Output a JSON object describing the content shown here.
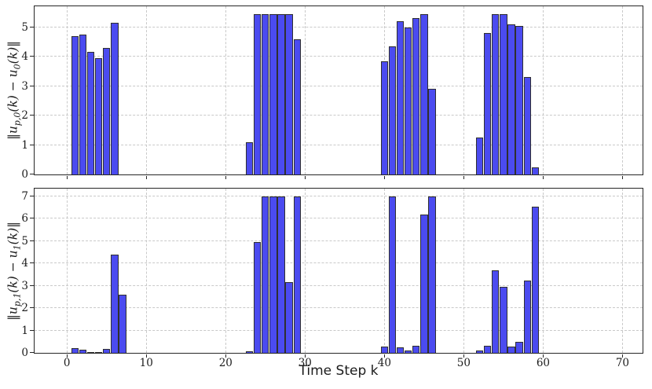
{
  "xlabel": "Time Step k",
  "style": {
    "bar_fill": "#4b4bf0",
    "bar_edge": "#2f2f2f",
    "grid_color": "#c9c9c9",
    "spine_color": "#262626",
    "text_color": "#1c1c1c"
  },
  "chart_data": [
    {
      "type": "bar",
      "title": "",
      "ylabel_text": "‖u_{p,0}(k) − u_{0}(k)‖",
      "ylabel_segments": [
        {
          "text": "‖u",
          "sub": false
        },
        {
          "text": "p,0",
          "sub": true
        },
        {
          "text": "(k) − u",
          "sub": false
        },
        {
          "text": "0",
          "sub": true
        },
        {
          "text": "(k)‖",
          "sub": false
        }
      ],
      "xlabel": "",
      "xlim": [
        -4.08,
        72.53
      ],
      "ylim": [
        0,
        5.71
      ],
      "xticks": [
        0,
        10,
        20,
        30,
        40,
        50,
        60,
        70
      ],
      "yticks": [
        0,
        1,
        2,
        3,
        4,
        5
      ],
      "show_x_tick_labels": false,
      "grid": true,
      "legend": "none",
      "bar_width": 0.93,
      "bars_note": "each entry is [k, value]",
      "bars": [
        [
          1,
          4.7
        ],
        [
          2,
          4.75
        ],
        [
          3,
          4.15
        ],
        [
          4,
          3.95
        ],
        [
          5,
          4.3
        ],
        [
          6,
          5.15
        ],
        [
          23,
          1.1
        ],
        [
          24,
          5.45
        ],
        [
          25,
          5.45
        ],
        [
          26,
          5.45
        ],
        [
          27,
          5.45
        ],
        [
          28,
          5.45
        ],
        [
          29,
          4.6
        ],
        [
          40,
          3.85
        ],
        [
          41,
          4.35
        ],
        [
          42,
          5.2
        ],
        [
          43,
          5.0
        ],
        [
          44,
          5.3
        ],
        [
          45,
          5.45
        ],
        [
          46,
          2.9
        ],
        [
          52,
          1.25
        ],
        [
          53,
          4.8
        ],
        [
          54,
          5.45
        ],
        [
          55,
          5.45
        ],
        [
          56,
          5.1
        ],
        [
          57,
          5.05
        ],
        [
          58,
          3.3
        ],
        [
          59,
          0.25
        ]
      ]
    },
    {
      "type": "bar",
      "title": "",
      "ylabel_text": "‖u_{p,1}(k) − u_{1}(k)‖",
      "ylabel_segments": [
        {
          "text": "‖u",
          "sub": false
        },
        {
          "text": "p,1",
          "sub": true
        },
        {
          "text": "(k) − u",
          "sub": false
        },
        {
          "text": "1",
          "sub": true
        },
        {
          "text": "(k)‖",
          "sub": false
        }
      ],
      "xlabel": "Time Step k",
      "xlim": [
        -4.08,
        72.53
      ],
      "ylim": [
        0,
        7.35
      ],
      "xticks": [
        0,
        10,
        20,
        30,
        40,
        50,
        60,
        70
      ],
      "yticks": [
        0,
        1,
        2,
        3,
        4,
        5,
        6,
        7
      ],
      "show_x_tick_labels": true,
      "grid": true,
      "legend": "none",
      "bar_width": 0.93,
      "bars_note": "each entry is [k, value]",
      "bars": [
        [
          1,
          0.2
        ],
        [
          2,
          0.13
        ],
        [
          3,
          0.03
        ],
        [
          4,
          0.05
        ],
        [
          5,
          0.18
        ],
        [
          6,
          4.4
        ],
        [
          7,
          2.6
        ],
        [
          23,
          0.07
        ],
        [
          24,
          4.95
        ],
        [
          25,
          7.0
        ],
        [
          26,
          7.0
        ],
        [
          27,
          7.0
        ],
        [
          28,
          3.15
        ],
        [
          29,
          7.0
        ],
        [
          40,
          0.27
        ],
        [
          41,
          7.0
        ],
        [
          42,
          0.25
        ],
        [
          43,
          0.12
        ],
        [
          44,
          0.33
        ],
        [
          45,
          6.2
        ],
        [
          46,
          7.0
        ],
        [
          52,
          0.1
        ],
        [
          53,
          0.33
        ],
        [
          54,
          3.7
        ],
        [
          55,
          2.95
        ],
        [
          56,
          0.28
        ],
        [
          57,
          0.5
        ],
        [
          58,
          3.25
        ],
        [
          59,
          6.55
        ]
      ]
    }
  ]
}
